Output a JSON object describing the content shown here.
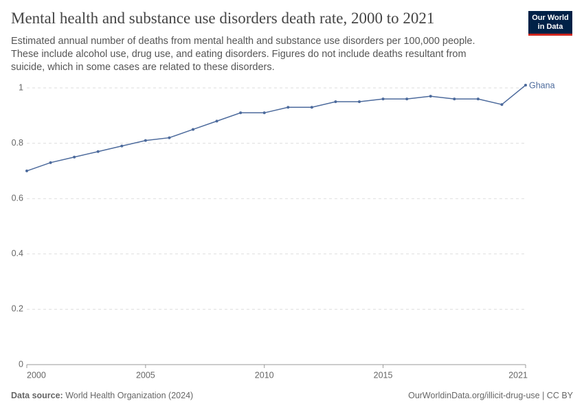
{
  "chart_data": {
    "type": "line",
    "title": "Mental health and substance use disorders death rate, 2000 to 2021",
    "subtitle": "Estimated annual number of deaths from mental health and substance use disorders per 100,000 people. These include alcohol use, drug use, and eating disorders. Figures do not include deaths resultant from suicide, which in some cases are related to these disorders.",
    "logo": [
      "Our World",
      "in Data"
    ],
    "source_label": "Data source:",
    "source": "World Health Organization (2024)",
    "url": "OurWorldinData.org/illicit-drug-use | CC BY",
    "x": [
      2000,
      2001,
      2002,
      2003,
      2004,
      2005,
      2006,
      2007,
      2008,
      2009,
      2010,
      2011,
      2012,
      2013,
      2014,
      2015,
      2016,
      2017,
      2018,
      2019,
      2020,
      2021
    ],
    "series": [
      {
        "name": "Ghana",
        "color": "#4c6a9c",
        "values": [
          0.7,
          0.73,
          0.75,
          0.77,
          0.79,
          0.81,
          0.82,
          0.85,
          0.88,
          0.91,
          0.91,
          0.93,
          0.93,
          0.95,
          0.95,
          0.96,
          0.96,
          0.97,
          0.96,
          0.96,
          0.94,
          1.01
        ]
      }
    ],
    "xlim": [
      2000,
      2021
    ],
    "xticks": [
      2000,
      2005,
      2010,
      2015,
      2021
    ],
    "ylim": [
      0,
      1.01
    ],
    "yticks": [
      0,
      0.2,
      0.4,
      0.6,
      0.8,
      1
    ],
    "grid": true
  }
}
